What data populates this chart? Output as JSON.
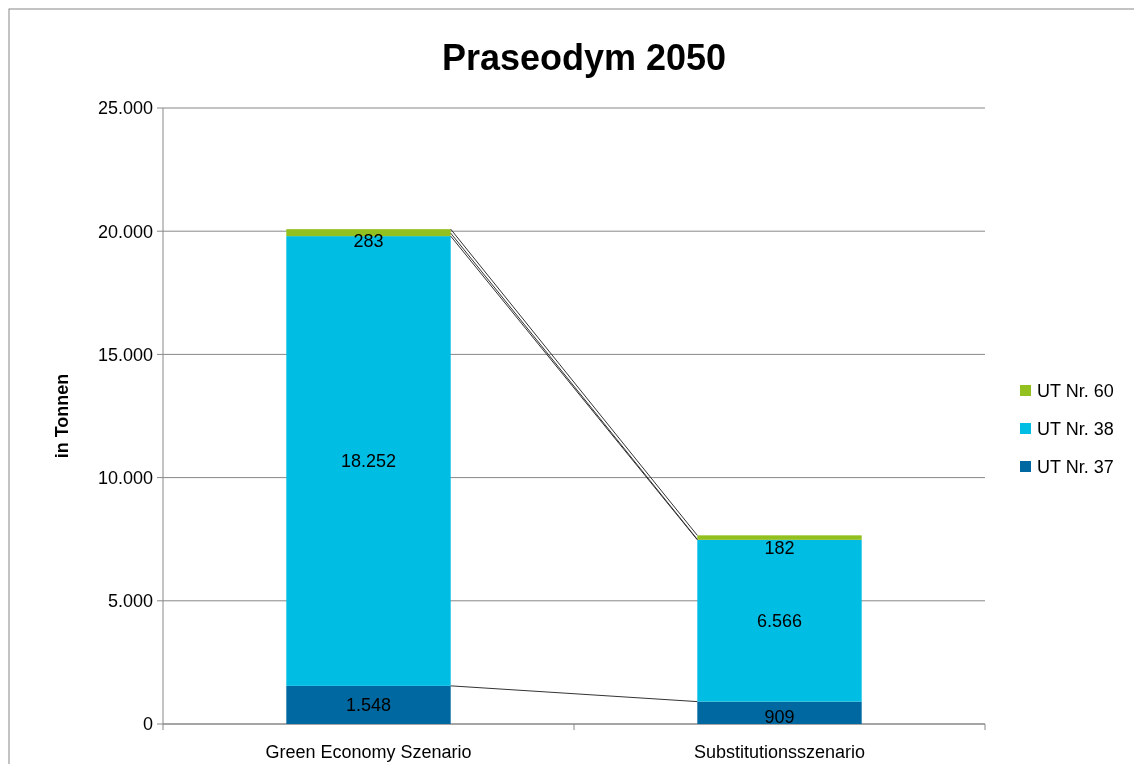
{
  "chart_data": {
    "type": "bar",
    "title": "Praseodym 2050",
    "ylabel": "in Tonnen",
    "stacked": true,
    "categories": [
      "Green Economy Szenario",
      "Substitutionsszenario"
    ],
    "series": [
      {
        "name": "UT Nr. 37",
        "color": "#0068a0",
        "values": [
          1548,
          909
        ],
        "value_labels": [
          "1.548",
          "909"
        ]
      },
      {
        "name": "UT Nr. 38",
        "color": "#00bde3",
        "values": [
          18252,
          6566
        ],
        "value_labels": [
          "18.252",
          "6.566"
        ]
      },
      {
        "name": "UT Nr. 60",
        "color": "#92c01f",
        "values": [
          283,
          182
        ],
        "value_labels": [
          "283",
          "182"
        ]
      }
    ],
    "ylim": [
      0,
      25000
    ],
    "yticks": [
      {
        "value": 0,
        "label": "0"
      },
      {
        "value": 5000,
        "label": "5.000"
      },
      {
        "value": 10000,
        "label": "10.000"
      },
      {
        "value": 15000,
        "label": "15.000"
      },
      {
        "value": 20000,
        "label": "20.000"
      },
      {
        "value": 25000,
        "label": "25.000"
      }
    ],
    "grid": "y",
    "legend": "right"
  }
}
